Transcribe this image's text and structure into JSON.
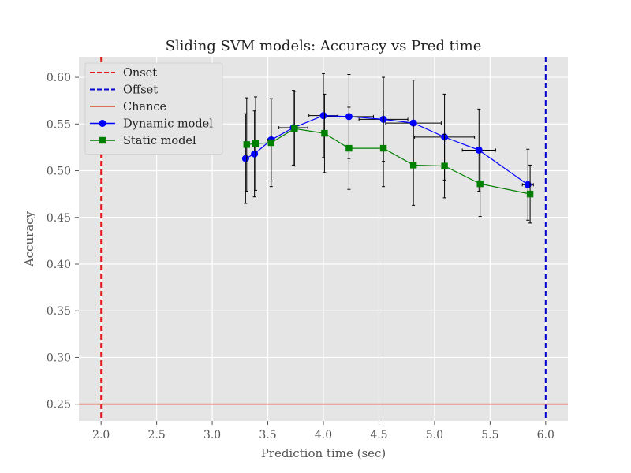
{
  "chart_data": {
    "type": "line",
    "title": "Sliding SVM models: Accuracy vs Pred time",
    "xlabel": "Prediction time (sec)",
    "ylabel": "Accuracy",
    "xlim": [
      1.8,
      6.2
    ],
    "ylim": [
      0.232,
      0.622
    ],
    "xticks": [
      "2.0",
      "2.5",
      "3.0",
      "3.5",
      "4.0",
      "4.5",
      "5.0",
      "5.5",
      "6.0"
    ],
    "yticks": [
      "0.25",
      "0.30",
      "0.35",
      "0.40",
      "0.45",
      "0.50",
      "0.55",
      "0.60"
    ],
    "grid": true,
    "legend_position": "upper-left",
    "reference_lines": [
      {
        "name": "Onset",
        "orientation": "vertical",
        "value": 2.0,
        "color": "#e41a1c",
        "style": "dashed"
      },
      {
        "name": "Offset",
        "orientation": "vertical",
        "value": 6.0,
        "color": "#0000cc",
        "style": "dashed"
      },
      {
        "name": "Chance",
        "orientation": "horizontal",
        "value": 0.25,
        "color": "#e24a33",
        "style": "solid"
      }
    ],
    "series": [
      {
        "name": "Dynamic model",
        "color": "#0000ff",
        "marker": "circle",
        "x": [
          3.3,
          3.38,
          3.53,
          3.73,
          4.0,
          4.23,
          4.54,
          4.81,
          5.09,
          5.4,
          5.84
        ],
        "y": [
          0.513,
          0.518,
          0.533,
          0.546,
          0.559,
          0.558,
          0.555,
          0.551,
          0.536,
          0.522,
          0.485
        ],
        "y_err": [
          0.048,
          0.046,
          0.044,
          0.04,
          0.045,
          0.045,
          0.045,
          0.046,
          0.046,
          0.044,
          0.038
        ],
        "x_err": [
          0.0,
          0.0,
          0.03,
          0.13,
          0.13,
          0.22,
          0.22,
          0.25,
          0.27,
          0.15,
          0.05
        ]
      },
      {
        "name": "Static model",
        "color": "#008000",
        "marker": "square",
        "x": [
          3.31,
          3.39,
          3.53,
          3.74,
          4.01,
          4.23,
          4.54,
          4.81,
          5.09,
          5.41,
          5.86
        ],
        "y": [
          0.528,
          0.529,
          0.53,
          0.545,
          0.54,
          0.524,
          0.524,
          0.506,
          0.505,
          0.486,
          0.475
        ],
        "y_err": [
          0.05,
          0.05,
          0.047,
          0.04,
          0.042,
          0.044,
          0.041,
          0.043,
          0.034,
          0.035,
          0.031
        ],
        "x_err": [
          0.0,
          0.0,
          0.0,
          0.0,
          0.0,
          0.0,
          0.0,
          0.0,
          0.0,
          0.0,
          0.0
        ]
      }
    ]
  }
}
